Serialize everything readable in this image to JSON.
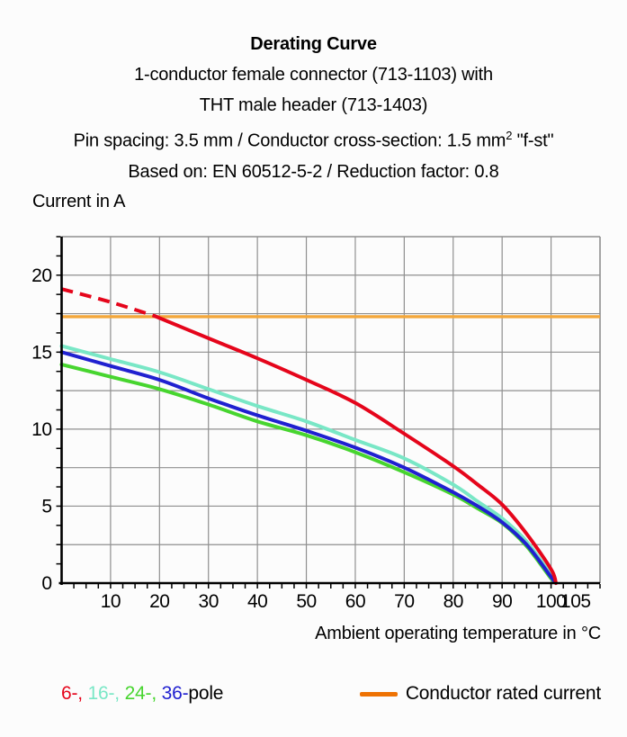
{
  "title": {
    "line1": "Derating Curve",
    "line2": "1-conductor female connector (713-1103) with",
    "line3": "THT male header (713-1403)",
    "line4_pre": "Pin spacing: 3.5 mm / Conductor cross-section: 1.5 mm",
    "line4_sup": "2",
    "line4_post": " \"f-st\"",
    "line5": "Based on: EN 60512-5-2 / Reduction factor: 0.8"
  },
  "chart_data": {
    "type": "line",
    "title": "Derating Curve",
    "xlabel": "Ambient operating temperature in °C",
    "ylabel": "Current in A",
    "xlim": [
      0,
      110
    ],
    "ylim": [
      0,
      22.5
    ],
    "x_tick_values": [
      10,
      20,
      30,
      40,
      50,
      60,
      70,
      80,
      90,
      100,
      105
    ],
    "x_tick_labels": [
      "10",
      "20",
      "30",
      "40",
      "50",
      "60",
      "70",
      "80",
      "90",
      "100",
      "105"
    ],
    "y_tick_values": [
      0,
      5,
      10,
      15,
      20
    ],
    "y_tick_labels": [
      "0",
      "5",
      "10",
      "15",
      "20"
    ],
    "x_gridline_values": [
      10,
      20,
      30,
      40,
      50,
      60,
      70,
      80,
      90,
      100
    ],
    "y_gridline_step": 2.5,
    "x_minor_tick_step": 2.5,
    "y_minor_tick_step": 1.25,
    "grid_color": "#8f8f8f",
    "axis_color": "#000000",
    "reference_line": {
      "name": "Conductor rated current",
      "value": 17.3,
      "color": "#f3a73b"
    },
    "series": [
      {
        "name": "24-pole",
        "color": "#47d52f",
        "x": [
          0,
          10,
          20,
          30,
          40,
          50,
          60,
          70,
          80,
          85,
          90,
          95,
          100,
          101
        ],
        "values": [
          14.2,
          13.4,
          12.6,
          11.6,
          10.5,
          9.6,
          8.5,
          7.2,
          5.75,
          4.85,
          3.9,
          2.4,
          0.3,
          0
        ]
      },
      {
        "name": "16-pole",
        "color": "#79e7c6",
        "x": [
          0,
          10,
          20,
          30,
          40,
          50,
          60,
          70,
          80,
          85,
          90,
          95,
          100,
          101
        ],
        "values": [
          15.4,
          14.55,
          13.7,
          12.6,
          11.5,
          10.5,
          9.3,
          8.1,
          6.4,
          5.3,
          4.2,
          2.7,
          0.5,
          0
        ]
      },
      {
        "name": "36-pole",
        "color": "#2020d0",
        "x": [
          0,
          10,
          20,
          30,
          40,
          50,
          60,
          70,
          80,
          85,
          90,
          95,
          100,
          101
        ],
        "values": [
          15.0,
          14.1,
          13.2,
          12.0,
          10.9,
          9.9,
          8.8,
          7.5,
          5.9,
          5.0,
          3.95,
          2.5,
          0.4,
          0
        ]
      },
      {
        "name": "6-pole",
        "color": "#e5051b",
        "dash_until": 19,
        "x": [
          0,
          10,
          19,
          30,
          40,
          50,
          60,
          70,
          80,
          85,
          90,
          95,
          100,
          101
        ],
        "values": [
          19.1,
          18.25,
          17.35,
          15.9,
          14.6,
          13.2,
          11.7,
          9.7,
          7.6,
          6.4,
          5.1,
          3.2,
          0.9,
          0
        ]
      }
    ]
  },
  "legend": {
    "pole_segments": [
      {
        "text": "6-, ",
        "color": "#e5051b"
      },
      {
        "text": "16-, ",
        "color": "#79e7c6"
      },
      {
        "text": "24-, ",
        "color": "#47d52f"
      },
      {
        "text": "36-",
        "color": "#2020d0"
      },
      {
        "text": "pole",
        "color": "#000000"
      }
    ],
    "rated": {
      "label": "Conductor rated current",
      "swatch_color": "#ee7203"
    }
  }
}
